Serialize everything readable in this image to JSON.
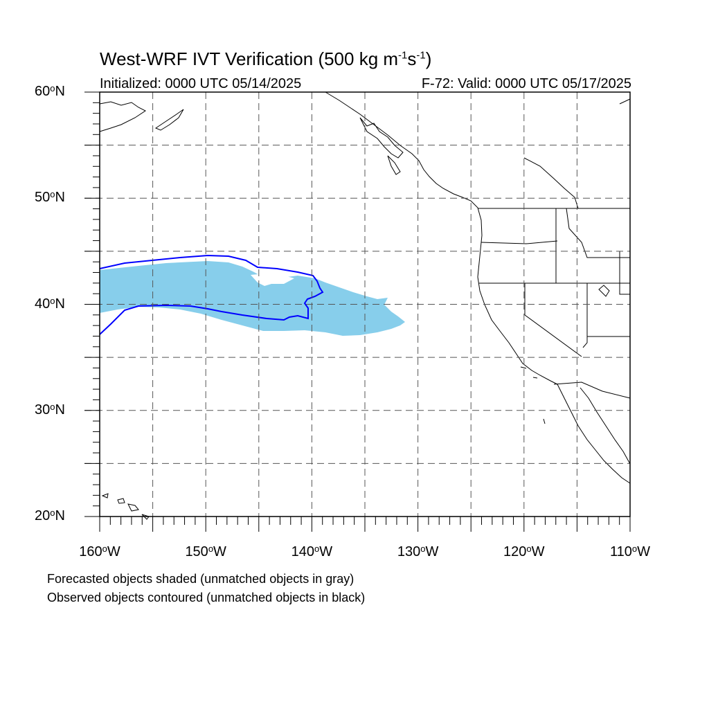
{
  "title": {
    "main": "West-WRF IVT Verification (500 kg m",
    "exp1": "-1",
    "mid": "s",
    "exp2": "-1",
    "close": ")"
  },
  "subtitle_left": "Initialized: 0000 UTC 05/14/2025",
  "subtitle_right": "F-72: Valid: 0000 UTC 05/17/2025",
  "map": {
    "lon_range": [
      -160,
      -110
    ],
    "lat_range": [
      20,
      60
    ],
    "lat_ticks": [
      {
        "value": 60,
        "label": "60",
        "suffix": "N"
      },
      {
        "value": 50,
        "label": "50",
        "suffix": "N"
      },
      {
        "value": 40,
        "label": "40",
        "suffix": "N"
      },
      {
        "value": 30,
        "label": "30",
        "suffix": "N"
      },
      {
        "value": 20,
        "label": "20",
        "suffix": "N"
      }
    ],
    "lon_ticks": [
      {
        "value": -160,
        "label": "160",
        "suffix": "W"
      },
      {
        "value": -150,
        "label": "150",
        "suffix": "W"
      },
      {
        "value": -140,
        "label": "140",
        "suffix": "W"
      },
      {
        "value": -130,
        "label": "130",
        "suffix": "W"
      },
      {
        "value": -120,
        "label": "120",
        "suffix": "W"
      },
      {
        "value": -110,
        "label": "110",
        "suffix": "W"
      }
    ],
    "forecast_color": "#87ceeb",
    "observed_color": "#0000ff",
    "grid_color": "#555555"
  },
  "notes": [
    "Forecasted objects shaded (unmatched objects in gray)",
    "Observed objects contoured (unmatched objects in black)"
  ]
}
